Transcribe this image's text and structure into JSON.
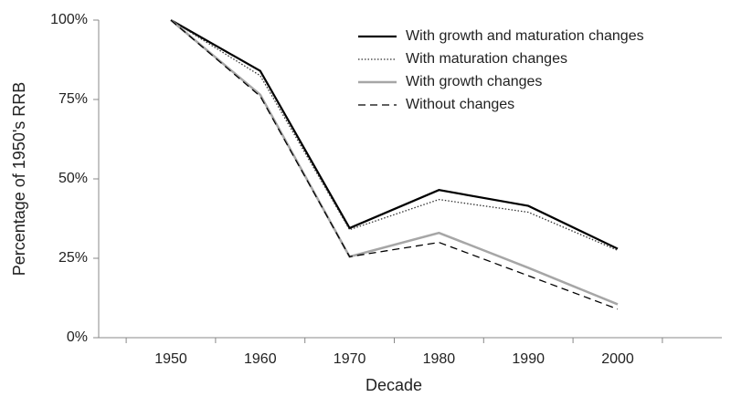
{
  "chart_data": {
    "type": "line",
    "x_label": "Decade",
    "y_label": "Percentage of 1950's  RRB",
    "categories": [
      "1950",
      "1960",
      "1970",
      "1980",
      "1990",
      "2000"
    ],
    "series": [
      {
        "name": "With growth and maturation changes",
        "color": "#000000",
        "dash": "solid",
        "values": [
          100,
          84,
          34.5,
          46.5,
          41.5,
          28
        ]
      },
      {
        "name": "With maturation changes",
        "color": "#333333",
        "dash": "dotted",
        "values": [
          100,
          82.5,
          34,
          43.5,
          39.5,
          27.5
        ]
      },
      {
        "name": "With growth changes",
        "color": "#a6a6a6",
        "dash": "solid",
        "values": [
          100,
          76.5,
          25.5,
          33,
          22,
          10.5
        ]
      },
      {
        "name": "Without changes",
        "color": "#000000",
        "dash": "dashed",
        "values": [
          100,
          76,
          25.5,
          30,
          19.5,
          9
        ]
      }
    ],
    "ylim": [
      0,
      100
    ],
    "yticks": [
      {
        "value": 0,
        "label": "0%"
      },
      {
        "value": 25,
        "label": "25%"
      },
      {
        "value": 50,
        "label": "50%"
      },
      {
        "value": 75,
        "label": "75%"
      },
      {
        "value": 100,
        "label": "100%"
      }
    ],
    "grid": false,
    "legend": "top-right"
  }
}
